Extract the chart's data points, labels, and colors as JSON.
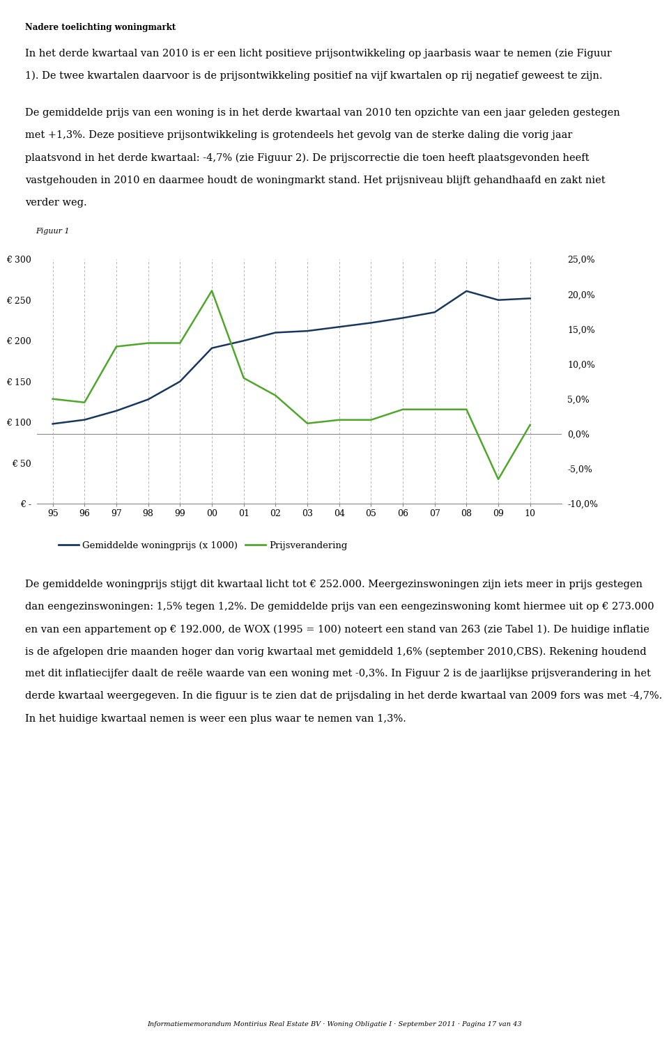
{
  "title": "Nadere toelichting woningmarkt",
  "figuur_label": "Figuur 1",
  "para1_lines": [
    "In het derde kwartaal van 2010 is er een licht positieve prijsontwikkeling op jaarbasis waar te nemen (zie Figuur",
    "1). De twee kwartalen daarvoor is de prijsontwikkeling positief na vijf kwartalen op rij negatief geweest te zijn."
  ],
  "para2_lines": [
    "De gemiddelde prijs van een woning is in het derde kwartaal van 2010 ten opzichte van een jaar geleden gestegen",
    "met +1,3%. Deze positieve prijsontwikkeling is grotendeels het gevolg van de sterke daling die vorig jaar",
    "plaatsvond in het derde kwartaal: -4,7% (zie Figuur 2). De prijscorrectie die toen heeft plaatsgevonden heeft",
    "vastgehouden in 2010 en daarmee houdt de woningmarkt stand. Het prijsniveau blijft gehandhaafd en zakt niet",
    "verder weg."
  ],
  "para3_lines": [
    "De gemiddelde woningprijs stijgt dit kwartaal licht tot € 252.000. Meergezinswoningen zijn iets meer in prijs gestegen",
    "dan eengezinswoningen: 1,5% tegen 1,2%. De gemiddelde prijs van een eengezinswoning komt hiermee uit op € 273.000",
    "en van een appartement op € 192.000, de WOX (1995 = 100) noteert een stand van 263 (zie Tabel 1). De huidige inflatie",
    "is de afgelopen drie maanden hoger dan vorig kwartaal met gemiddeld 1,6% (september 2010,CBS). Rekening houdend",
    "met dit inflatiecijfer daalt de reële waarde van een woning met -0,3%. In Figuur 2 is de jaarlijkse prijsverandering in het",
    "derde kwartaal weergegeven. In die figuur is te zien dat de prijsdaling in het derde kwartaal van 2009 fors was met -4,7%.",
    "In het huidige kwartaal nemen is weer een plus waar te nemen van 1,3%."
  ],
  "footer_text": "Informatiememorandum Montirius Real Estate BV · Woning Obligatie I · September 2011 · Pagina 17 van 43",
  "x_labels": [
    "95",
    "96",
    "97",
    "98",
    "99",
    "00",
    "01",
    "02",
    "03",
    "04",
    "05",
    "06",
    "07",
    "08",
    "09",
    "10"
  ],
  "x_values": [
    1995,
    1996,
    1997,
    1998,
    1999,
    2000,
    2001,
    2002,
    2003,
    2004,
    2005,
    2006,
    2007,
    2008,
    2009,
    2010
  ],
  "price_values": [
    98,
    103,
    114,
    128,
    150,
    191,
    200,
    210,
    212,
    217,
    222,
    228,
    235,
    261,
    250,
    252
  ],
  "price_change_values": [
    5.0,
    4.5,
    12.5,
    13.0,
    13.0,
    20.5,
    8.0,
    5.5,
    1.5,
    2.0,
    2.0,
    3.5,
    3.5,
    3.5,
    -6.5,
    1.3
  ],
  "left_ylim": [
    0,
    300
  ],
  "left_yticks": [
    0,
    50,
    100,
    150,
    200,
    250,
    300
  ],
  "left_yticklabels": [
    "€ -",
    "€ 50",
    "€ 100",
    "€ 150",
    "€ 200",
    "€ 250",
    "€ 300"
  ],
  "right_ylim": [
    -10.0,
    25.0
  ],
  "right_yticks": [
    -10.0,
    -5.0,
    0.0,
    5.0,
    10.0,
    15.0,
    20.0,
    25.0
  ],
  "right_yticklabels": [
    "-10,0%",
    "-5,0%",
    "0,0%",
    "5,0%",
    "10,0%",
    "15,0%",
    "20,0%",
    "25,0%"
  ],
  "blue_color": "#17375E",
  "green_color": "#4EA72A",
  "legend_label_blue": "Gemiddelde woningprijs (x 1000)",
  "legend_label_green": "Prijsverandering",
  "background_color": "#ffffff",
  "grid_color": "#AAAAAA",
  "text_color": "#000000",
  "title_font_size": 8.5,
  "body_font_size": 10.5,
  "axis_font_size": 9,
  "figuur_font_size": 8,
  "legend_font_size": 9.5,
  "footer_font_size": 7
}
